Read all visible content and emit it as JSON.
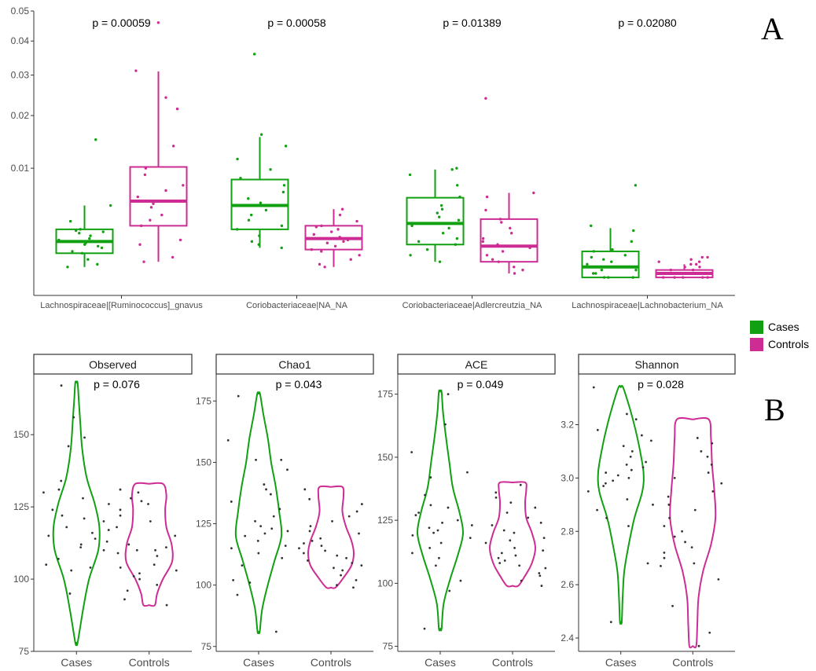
{
  "panel_labels": [
    "A",
    "B"
  ],
  "colors": {
    "cases": "#11a011",
    "controls": "#cc2c93",
    "points_b": "#333333"
  },
  "legend": {
    "placement": "right",
    "items": [
      {
        "label": "Cases",
        "color": "#11a011"
      },
      {
        "label": "Controls",
        "color": "#cc2c93"
      }
    ]
  },
  "chart_data": [
    {
      "type": "box",
      "panel": "A",
      "yscale": "sqrt",
      "ylim": [
        0,
        0.05
      ],
      "yticks": [
        0.01,
        0.02,
        0.03,
        0.04,
        0.05
      ],
      "ytick_labels": [
        "0.01",
        "0.02",
        "0.03",
        "0.04",
        "0.05"
      ],
      "groups": [
        "Cases",
        "Controls"
      ],
      "categories": [
        {
          "label": "Lachnospiraceae|[Ruminococcus]_gnavus",
          "pvalue": "p = 0.00059",
          "boxes": [
            {
              "group": "Cases",
              "whislo": 0.0005,
              "q1": 0.0011,
              "med": 0.0018,
              "q3": 0.0027,
              "whishi": 0.005,
              "points": [
                0.0005,
                0.0006,
                0.0008,
                0.0011,
                0.0012,
                0.0014,
                0.0015,
                0.0016,
                0.0017,
                0.0018,
                0.0019,
                0.002,
                0.0022,
                0.0024,
                0.0025,
                0.0026,
                0.0027,
                0.0034,
                0.005,
                0.015
              ]
            },
            {
              "group": "Controls",
              "whislo": 0.0007,
              "q1": 0.003,
              "med": 0.0055,
              "q3": 0.0102,
              "whishi": 0.031,
              "points": [
                0.0007,
                0.0009,
                0.0016,
                0.0019,
                0.003,
                0.0035,
                0.004,
                0.0048,
                0.0052,
                0.0055,
                0.006,
                0.0068,
                0.0075,
                0.009,
                0.01,
                0.0138,
                0.0215,
                0.0242,
                0.0312,
                0.046
              ]
            }
          ]
        },
        {
          "label": "Coriobacteriaceae|NA_NA",
          "pvalue": "p = 0.00058",
          "boxes": [
            {
              "group": "Cases",
              "whislo": 0.0014,
              "q1": 0.0027,
              "med": 0.005,
              "q3": 0.0083,
              "whishi": 0.0155,
              "points": [
                0.0014,
                0.0016,
                0.0018,
                0.0022,
                0.0027,
                0.003,
                0.0035,
                0.004,
                0.0045,
                0.005,
                0.0053,
                0.0058,
                0.0066,
                0.0075,
                0.0085,
                0.0098,
                0.0115,
                0.0138,
                0.016,
                0.036
              ]
            },
            {
              "group": "Controls",
              "whislo": 0.0005,
              "q1": 0.0013,
              "med": 0.002,
              "q3": 0.003,
              "whishi": 0.0046,
              "points": [
                0.0005,
                0.0006,
                0.0008,
                0.001,
                0.0012,
                0.0013,
                0.0015,
                0.0017,
                0.0018,
                0.0019,
                0.002,
                0.0021,
                0.0023,
                0.0025,
                0.0027,
                0.0029,
                0.003,
                0.0034,
                0.004,
                0.0046
              ]
            }
          ]
        },
        {
          "label": "Coriobacteriaceae|Adlercreutzia_NA",
          "pvalue": "p = 0.01389",
          "boxes": [
            {
              "group": "Cases",
              "whislo": 0.0007,
              "q1": 0.0016,
              "med": 0.0032,
              "q3": 0.0059,
              "whishi": 0.0098,
              "points": [
                0.0007,
                0.001,
                0.0013,
                0.0016,
                0.0018,
                0.002,
                0.0024,
                0.0028,
                0.003,
                0.0032,
                0.0035,
                0.0038,
                0.0042,
                0.0046,
                0.005,
                0.006,
                0.0075,
                0.009,
                0.0098,
                0.01
              ]
            },
            {
              "group": "Controls",
              "whislo": 0.0003,
              "q1": 0.0007,
              "med": 0.0015,
              "q3": 0.0036,
              "whishi": 0.0065,
              "points": [
                0.0003,
                0.0004,
                0.0005,
                0.0007,
                0.0008,
                0.001,
                0.0012,
                0.0014,
                0.0015,
                0.0016,
                0.0018,
                0.002,
                0.0024,
                0.0028,
                0.0033,
                0.0036,
                0.0045,
                0.006,
                0.0065,
                0.024
              ]
            }
          ]
        },
        {
          "label": "Lachnospiraceae|Lachnobacterium_NA",
          "pvalue": "p = 0.02080",
          "boxes": [
            {
              "group": "Cases",
              "whislo": 0.0002,
              "q1": 0.0002,
              "med": 0.0005,
              "q3": 0.0012,
              "whishi": 0.0028,
              "points": [
                0.0002,
                0.0002,
                0.0002,
                0.0003,
                0.0003,
                0.0004,
                0.0004,
                0.0005,
                0.0005,
                0.0006,
                0.0007,
                0.0008,
                0.0009,
                0.001,
                0.0012,
                0.0013,
                0.0018,
                0.0026,
                0.003,
                0.0075
              ]
            },
            {
              "group": "Controls",
              "whislo": 0.0002,
              "q1": 0.0002,
              "med": 0.0003,
              "q3": 0.0004,
              "whishi": 0.0006,
              "points": [
                0.0002,
                0.0002,
                0.0002,
                0.0002,
                0.0002,
                0.0003,
                0.0003,
                0.0003,
                0.0003,
                0.0004,
                0.0004,
                0.0005,
                0.0005,
                0.0006,
                0.0006,
                0.0007,
                0.0007,
                0.0008,
                0.0009,
                0.0009
              ]
            }
          ]
        }
      ]
    },
    {
      "type": "violin",
      "panel": "B",
      "title": "Observed",
      "pvalue": "p = 0.076",
      "categories": [
        "Cases",
        "Controls"
      ],
      "ylim": [
        75,
        171
      ],
      "yticks": [
        75,
        100,
        125,
        150
      ],
      "series": [
        {
          "name": "Cases",
          "min": 78,
          "max": 168,
          "profile": [
            [
              78,
              0.05
            ],
            [
              90,
              0.3
            ],
            [
              100,
              0.55
            ],
            [
              110,
              0.95
            ],
            [
              118,
              1.0
            ],
            [
              126,
              0.8
            ],
            [
              135,
              0.45
            ],
            [
              145,
              0.25
            ],
            [
              155,
              0.16
            ],
            [
              162,
              0.1
            ],
            [
              168,
              0.05
            ]
          ],
          "points": [
            95,
            103,
            104,
            105,
            107,
            110,
            111,
            112,
            113,
            114,
            115,
            116,
            117,
            118,
            120,
            121,
            122,
            124,
            126,
            128,
            130,
            131,
            134,
            146,
            149,
            156,
            167
          ]
        },
        {
          "name": "Controls",
          "min": 91,
          "max": 133,
          "profile": [
            [
              91,
              0.25
            ],
            [
              95,
              0.35
            ],
            [
              100,
              0.6
            ],
            [
              106,
              1.0
            ],
            [
              112,
              0.98
            ],
            [
              118,
              0.75
            ],
            [
              124,
              0.7
            ],
            [
              129,
              0.75
            ],
            [
              133,
              0.6
            ]
          ],
          "points": [
            91,
            93,
            96,
            98,
            100,
            101,
            102,
            103,
            104,
            105,
            108,
            109,
            110,
            110,
            111,
            112,
            115,
            118,
            120,
            122,
            124,
            126,
            127,
            128,
            130,
            131
          ]
        }
      ]
    },
    {
      "type": "violin",
      "panel": "B",
      "title": "Chao1",
      "pvalue": "p = 0.043",
      "categories": [
        "Cases",
        "Controls"
      ],
      "ylim": [
        73,
        186
      ],
      "yticks": [
        75,
        100,
        125,
        150,
        175
      ],
      "series": [
        {
          "name": "Cases",
          "min": 81,
          "max": 178,
          "profile": [
            [
              81,
              0.05
            ],
            [
              90,
              0.15
            ],
            [
              100,
              0.4
            ],
            [
              110,
              0.7
            ],
            [
              120,
              1.0
            ],
            [
              130,
              0.9
            ],
            [
              140,
              0.75
            ],
            [
              150,
              0.55
            ],
            [
              160,
              0.4
            ],
            [
              170,
              0.2
            ],
            [
              178,
              0.06
            ]
          ],
          "points": [
            81,
            96,
            101,
            102,
            108,
            111,
            113,
            115,
            116,
            118,
            120,
            121,
            122,
            123,
            124,
            126,
            128,
            131,
            134,
            137,
            139,
            141,
            147,
            151,
            151,
            159,
            177
          ]
        },
        {
          "name": "Controls",
          "min": 99,
          "max": 140,
          "profile": [
            [
              99,
              0.2
            ],
            [
              103,
              0.55
            ],
            [
              108,
              0.9
            ],
            [
              113,
              1.0
            ],
            [
              118,
              0.9
            ],
            [
              124,
              0.65
            ],
            [
              130,
              0.5
            ],
            [
              136,
              0.55
            ],
            [
              140,
              0.5
            ]
          ],
          "points": [
            99,
            100,
            102,
            104,
            106,
            107,
            108,
            109,
            110,
            111,
            112,
            113,
            114,
            115,
            116,
            117,
            118,
            119,
            121,
            122,
            124,
            126,
            128,
            130,
            133,
            135,
            139
          ]
        }
      ]
    },
    {
      "type": "violin",
      "panel": "B",
      "title": "ACE",
      "pvalue": "p = 0.049",
      "categories": [
        "Cases",
        "Controls"
      ],
      "ylim": [
        73,
        183
      ],
      "yticks": [
        75,
        100,
        125,
        150,
        175
      ],
      "series": [
        {
          "name": "Cases",
          "min": 82,
          "max": 176,
          "profile": [
            [
              82,
              0.06
            ],
            [
              92,
              0.15
            ],
            [
              102,
              0.45
            ],
            [
              112,
              0.8
            ],
            [
              120,
              1.0
            ],
            [
              128,
              0.85
            ],
            [
              138,
              0.55
            ],
            [
              148,
              0.4
            ],
            [
              158,
              0.25
            ],
            [
              168,
              0.12
            ],
            [
              176,
              0.06
            ]
          ],
          "points": [
            82,
            97,
            101,
            107,
            110,
            112,
            114,
            116,
            118,
            119,
            120,
            121,
            122,
            123,
            124,
            125,
            127,
            128,
            130,
            131,
            135,
            142,
            144,
            152,
            163,
            175
          ]
        },
        {
          "name": "Controls",
          "min": 99,
          "max": 140,
          "profile": [
            [
              99,
              0.25
            ],
            [
              103,
              0.55
            ],
            [
              108,
              0.85
            ],
            [
              114,
              1.0
            ],
            [
              120,
              0.85
            ],
            [
              126,
              0.6
            ],
            [
              132,
              0.55
            ],
            [
              137,
              0.6
            ],
            [
              140,
              0.55
            ]
          ],
          "points": [
            99,
            101,
            103,
            104,
            106,
            107,
            108,
            109,
            110,
            111,
            112,
            113,
            114,
            116,
            117,
            118,
            120,
            121,
            123,
            124,
            126,
            128,
            130,
            132,
            134,
            136,
            139
          ]
        }
      ]
    },
    {
      "type": "violin",
      "panel": "B",
      "title": "Shannon",
      "pvalue": "p = 0.028",
      "categories": [
        "Cases",
        "Controls"
      ],
      "ylim": [
        2.35,
        3.39
      ],
      "yticks": [
        2.4,
        2.6,
        2.8,
        3.0,
        3.2
      ],
      "ytick_labels": [
        "2.4",
        "2.6",
        "2.8",
        "3.0",
        "3.2"
      ],
      "series": [
        {
          "name": "Cases",
          "min": 2.46,
          "max": 3.34,
          "profile": [
            [
              2.46,
              0.04
            ],
            [
              2.55,
              0.08
            ],
            [
              2.65,
              0.15
            ],
            [
              2.75,
              0.35
            ],
            [
              2.85,
              0.6
            ],
            [
              2.95,
              0.95
            ],
            [
              3.02,
              1.0
            ],
            [
              3.1,
              0.85
            ],
            [
              3.18,
              0.65
            ],
            [
              3.26,
              0.4
            ],
            [
              3.34,
              0.1
            ]
          ],
          "points": [
            2.46,
            2.68,
            2.82,
            2.85,
            2.88,
            2.9,
            2.92,
            2.95,
            2.97,
            2.98,
            2.99,
            3.0,
            3.01,
            3.02,
            3.03,
            3.04,
            3.05,
            3.06,
            3.08,
            3.1,
            3.12,
            3.14,
            3.16,
            3.18,
            3.22,
            3.24,
            3.34
          ]
        },
        {
          "name": "Controls",
          "min": 2.37,
          "max": 3.22,
          "profile": [
            [
              2.37,
              0.15
            ],
            [
              2.45,
              0.2
            ],
            [
              2.55,
              0.25
            ],
            [
              2.65,
              0.45
            ],
            [
              2.75,
              0.8
            ],
            [
              2.85,
              1.0
            ],
            [
              2.95,
              0.95
            ],
            [
              3.05,
              0.85
            ],
            [
              3.15,
              0.8
            ],
            [
              3.22,
              0.7
            ]
          ],
          "points": [
            2.37,
            2.42,
            2.52,
            2.62,
            2.67,
            2.68,
            2.7,
            2.72,
            2.74,
            2.76,
            2.78,
            2.8,
            2.82,
            2.85,
            2.88,
            2.9,
            2.93,
            2.95,
            2.98,
            3.0,
            3.02,
            3.05,
            3.08,
            3.1,
            3.13,
            3.15
          ]
        }
      ]
    }
  ]
}
